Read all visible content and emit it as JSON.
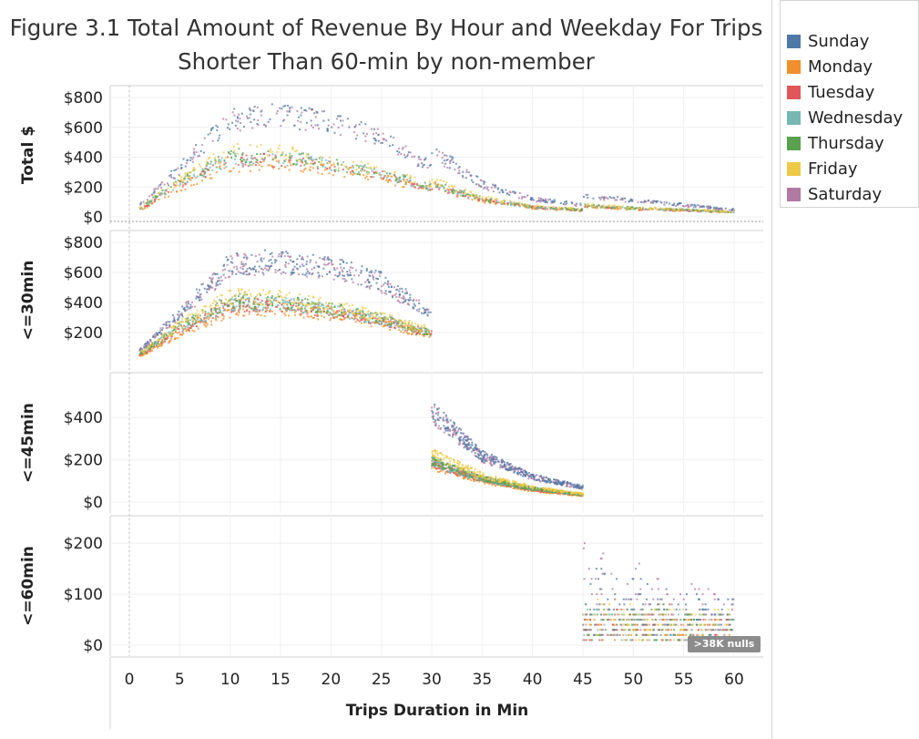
{
  "chart_data": {
    "type": "scatter",
    "title": "Figure 3.1 Total Amount of Revenue By Hour and Weekday For Trips Shorter Than 60-min by non-member",
    "xlabel": "Trips Duration in Min",
    "xlim": [
      0,
      60
    ],
    "xticks": [
      "0",
      "5",
      "10",
      "15",
      "20",
      "25",
      "30",
      "35",
      "40",
      "45",
      "50",
      "55",
      "60"
    ],
    "legend": {
      "placement": "top-right",
      "entries": [
        "Sunday",
        "Monday",
        "Tuesday",
        "Wednesday",
        "Thursday",
        "Friday",
        "Saturday"
      ]
    },
    "colors": {
      "Sunday": "#4e79a7",
      "Monday": "#f28e2b",
      "Tuesday": "#e15759",
      "Wednesday": "#76b7b2",
      "Thursday": "#59a14f",
      "Friday": "#edc948",
      "Saturday": "#b07aa1"
    },
    "panels": [
      {
        "label": "Total $",
        "ylim": [
          0,
          800
        ],
        "yticks": [
          "$0",
          "$200",
          "$400",
          "$600",
          "$800"
        ],
        "xrange": [
          1,
          60
        ],
        "series": [
          {
            "name": "Sunday",
            "x": [
              1,
              5,
              10,
              15,
              20,
              25,
              30,
              30,
              35,
              40,
              45,
              45,
              50,
              55,
              60
            ],
            "y": [
              80,
              330,
              650,
              680,
              640,
              540,
              330,
              450,
              220,
              120,
              80,
              140,
              110,
              80,
              50
            ]
          },
          {
            "name": "Monday",
            "x": [
              1,
              5,
              10,
              15,
              20,
              25,
              30,
              30,
              35,
              40,
              45,
              45,
              50,
              55,
              60
            ],
            "y": [
              40,
              190,
              340,
              350,
              320,
              260,
              180,
              200,
              110,
              60,
              40,
              70,
              50,
              40,
              30
            ]
          },
          {
            "name": "Tuesday",
            "x": [
              1,
              5,
              10,
              15,
              20,
              25,
              30,
              30,
              35,
              40,
              45,
              45,
              50,
              55,
              60
            ],
            "y": [
              50,
              220,
              380,
              380,
              340,
              280,
              190,
              210,
              115,
              65,
              45,
              75,
              55,
              45,
              30
            ]
          },
          {
            "name": "Wednesday",
            "x": [
              1,
              5,
              10,
              15,
              20,
              25,
              30,
              30,
              35,
              40,
              45,
              45,
              50,
              55,
              60
            ],
            "y": [
              55,
              230,
              390,
              390,
              350,
              285,
              195,
              215,
              118,
              66,
              46,
              76,
              56,
              46,
              31
            ]
          },
          {
            "name": "Thursday",
            "x": [
              1,
              5,
              10,
              15,
              20,
              25,
              30,
              30,
              35,
              40,
              45,
              45,
              50,
              55,
              60
            ],
            "y": [
              58,
              240,
              410,
              400,
              360,
              290,
              200,
              220,
              120,
              68,
              48,
              78,
              58,
              48,
              32
            ]
          },
          {
            "name": "Friday",
            "x": [
              1,
              5,
              10,
              15,
              20,
              25,
              30,
              30,
              35,
              40,
              45,
              45,
              50,
              55,
              60
            ],
            "y": [
              62,
              250,
              440,
              430,
              380,
              300,
              210,
              240,
              130,
              72,
              50,
              82,
              60,
              50,
              33
            ]
          },
          {
            "name": "Saturday",
            "x": [
              1,
              5,
              10,
              15,
              20,
              25,
              30,
              30,
              35,
              40,
              45,
              45,
              50,
              55,
              60
            ],
            "y": [
              78,
              320,
              640,
              670,
              630,
              530,
              320,
              440,
              215,
              118,
              78,
              136,
              108,
              78,
              48
            ]
          }
        ]
      },
      {
        "label": "<=30min",
        "ylim": [
          0,
          800
        ],
        "yticks": [
          "$200",
          "$400",
          "$600",
          "$800"
        ],
        "xrange": [
          1,
          30
        ],
        "series": [
          {
            "name": "Sunday",
            "x": [
              1,
              5,
              10,
              15,
              20,
              25,
              30
            ],
            "y": [
              80,
              330,
              650,
              680,
              640,
              540,
              330
            ]
          },
          {
            "name": "Monday",
            "x": [
              1,
              5,
              10,
              15,
              20,
              25,
              30
            ],
            "y": [
              40,
              190,
              340,
              350,
              320,
              260,
              180
            ]
          },
          {
            "name": "Tuesday",
            "x": [
              1,
              5,
              10,
              15,
              20,
              25,
              30
            ],
            "y": [
              50,
              220,
              380,
              380,
              340,
              280,
              190
            ]
          },
          {
            "name": "Wednesday",
            "x": [
              1,
              5,
              10,
              15,
              20,
              25,
              30
            ],
            "y": [
              55,
              230,
              390,
              390,
              350,
              285,
              195
            ]
          },
          {
            "name": "Thursday",
            "x": [
              1,
              5,
              10,
              15,
              20,
              25,
              30
            ],
            "y": [
              58,
              240,
              410,
              400,
              360,
              290,
              200
            ]
          },
          {
            "name": "Friday",
            "x": [
              1,
              5,
              10,
              15,
              20,
              25,
              30
            ],
            "y": [
              62,
              250,
              440,
              430,
              380,
              300,
              210
            ]
          },
          {
            "name": "Saturday",
            "x": [
              1,
              5,
              10,
              15,
              20,
              25,
              30
            ],
            "y": [
              78,
              320,
              640,
              670,
              630,
              530,
              320
            ]
          }
        ]
      },
      {
        "label": "<=45min",
        "ylim": [
          0,
          500
        ],
        "yticks": [
          "$0",
          "$200",
          "$400"
        ],
        "xrange": [
          30,
          45
        ],
        "series": [
          {
            "name": "Sunday",
            "x": [
              30,
              35,
              40,
              45
            ],
            "y": [
              430,
              220,
              120,
              70
            ]
          },
          {
            "name": "Monday",
            "x": [
              30,
              35,
              40,
              45
            ],
            "y": [
              170,
              100,
              55,
              30
            ]
          },
          {
            "name": "Tuesday",
            "x": [
              30,
              35,
              40,
              45
            ],
            "y": [
              185,
              108,
              60,
              33
            ]
          },
          {
            "name": "Wednesday",
            "x": [
              30,
              35,
              40,
              45
            ],
            "y": [
              190,
              110,
              62,
              34
            ]
          },
          {
            "name": "Thursday",
            "x": [
              30,
              35,
              40,
              45
            ],
            "y": [
              195,
              112,
              64,
              35
            ]
          },
          {
            "name": "Friday",
            "x": [
              30,
              35,
              40,
              45
            ],
            "y": [
              230,
              125,
              70,
              38
            ]
          },
          {
            "name": "Saturday",
            "x": [
              30,
              35,
              40,
              45
            ],
            "y": [
              420,
              215,
              118,
              68
            ]
          }
        ]
      },
      {
        "label": "<=60min",
        "ylim": [
          0,
          220
        ],
        "yticks": [
          "$0",
          "$100",
          "$200"
        ],
        "xrange": [
          45,
          60
        ],
        "series": [
          {
            "name": "Sunday",
            "x": [
              45,
              50,
              55,
              60
            ],
            "y": [
              160,
              130,
              110,
              90
            ]
          },
          {
            "name": "Monday",
            "x": [
              45,
              50,
              55,
              60
            ],
            "y": [
              60,
              60,
              60,
              60
            ]
          },
          {
            "name": "Tuesday",
            "x": [
              45,
              50,
              55,
              60
            ],
            "y": [
              70,
              70,
              65,
              60
            ]
          },
          {
            "name": "Wednesday",
            "x": [
              45,
              50,
              55,
              60
            ],
            "y": [
              75,
              72,
              68,
              62
            ]
          },
          {
            "name": "Thursday",
            "x": [
              45,
              50,
              55,
              60
            ],
            "y": [
              80,
              75,
              70,
              65
            ]
          },
          {
            "name": "Friday",
            "x": [
              45,
              50,
              55,
              60
            ],
            "y": [
              90,
              85,
              78,
              70
            ]
          },
          {
            "name": "Saturday",
            "x": [
              45,
              50,
              55,
              60
            ],
            "y": [
              200,
              160,
              125,
              95
            ]
          }
        ]
      }
    ],
    "annotation": ">38K nulls"
  }
}
